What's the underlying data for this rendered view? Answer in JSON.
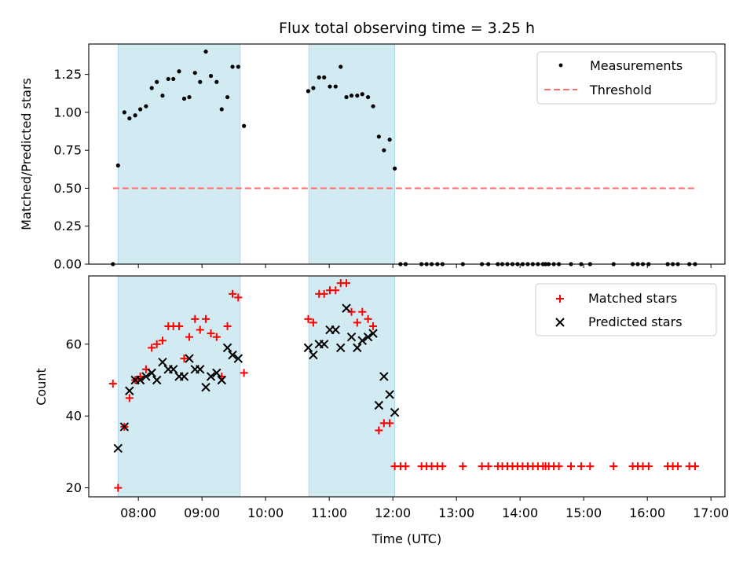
{
  "chart_data": [
    {
      "type": "scatter",
      "title": "Flux total observing time = 3.25 h",
      "ylabel": "Matched/Predicted stars",
      "xlabel": "",
      "xlim": [
        7.22,
        17.22
      ],
      "ylim": [
        0,
        1.45
      ],
      "yticks": [
        0.0,
        0.25,
        0.5,
        0.75,
        1.0,
        1.25
      ],
      "ytick_labels": [
        "0.00",
        "0.25",
        "0.50",
        "0.75",
        "1.00",
        "1.25"
      ],
      "shaded_spans": [
        [
          7.68,
          9.6
        ],
        [
          10.68,
          12.03
        ]
      ],
      "shaded_color": "#add8e6",
      "series": [
        {
          "name": "Measurements",
          "marker": "dot",
          "color": "#000000",
          "x": [
            7.6,
            7.68,
            7.78,
            7.86,
            7.95,
            8.03,
            8.12,
            8.21,
            8.29,
            8.38,
            8.47,
            8.55,
            8.64,
            8.72,
            8.8,
            8.89,
            8.97,
            9.06,
            9.14,
            9.23,
            9.31,
            9.4,
            9.48,
            9.57,
            9.66,
            10.67,
            10.75,
            10.84,
            10.92,
            11.01,
            11.1,
            11.18,
            11.27,
            11.35,
            11.44,
            11.52,
            11.61,
            11.69,
            11.78,
            11.86,
            11.95,
            12.03,
            12.12,
            12.2,
            12.45,
            12.53,
            12.61,
            12.7,
            12.78,
            13.1,
            13.4,
            13.5,
            13.65,
            13.72,
            13.8,
            13.88,
            13.96,
            14.04,
            14.12,
            14.2,
            14.28,
            14.36,
            14.4,
            14.45,
            14.53,
            14.61,
            14.8,
            14.96,
            15.1,
            15.47,
            15.77,
            15.85,
            15.93,
            16.02,
            16.32,
            16.4,
            16.48,
            16.66,
            16.75
          ],
          "y": [
            0.0,
            0.65,
            1.0,
            0.96,
            0.98,
            1.02,
            1.04,
            1.16,
            1.2,
            1.11,
            1.22,
            1.22,
            1.27,
            1.09,
            1.1,
            1.26,
            1.2,
            1.4,
            1.24,
            1.2,
            1.02,
            1.1,
            1.3,
            1.3,
            0.91,
            1.14,
            1.16,
            1.23,
            1.23,
            1.17,
            1.17,
            1.3,
            1.1,
            1.11,
            1.11,
            1.12,
            1.1,
            1.04,
            0.84,
            0.75,
            0.82,
            0.63,
            0.0,
            0.0,
            0.0,
            0.0,
            0.0,
            0.0,
            0.0,
            0.0,
            0.0,
            0.0,
            0.0,
            0.0,
            0.0,
            0.0,
            0.0,
            0.0,
            0.0,
            0.0,
            0.0,
            0.0,
            0.0,
            0.0,
            0.0,
            0.0,
            0.0,
            0.0,
            0.0,
            0.0,
            0.0,
            0.0,
            0.0,
            0.0,
            0.0,
            0.0,
            0.0,
            0.0,
            0.0
          ]
        },
        {
          "name": "Threshold",
          "marker": "dashed-line",
          "color": "#ff6e6e",
          "x": [
            7.6,
            16.78
          ],
          "y": [
            0.5,
            0.5
          ]
        }
      ],
      "legend": {
        "position": "top-right",
        "entries": [
          "Measurements",
          "Threshold"
        ]
      }
    },
    {
      "type": "scatter",
      "title": "",
      "ylabel": "Count",
      "xlabel": "Time (UTC)",
      "xlim": [
        7.22,
        17.22
      ],
      "ylim": [
        17.5,
        79
      ],
      "yticks": [
        20,
        40,
        60
      ],
      "ytick_labels": [
        "20",
        "40",
        "60"
      ],
      "xticks": [
        8,
        9,
        10,
        11,
        12,
        13,
        14,
        15,
        16,
        17
      ],
      "xtick_labels": [
        "08:00",
        "09:00",
        "10:00",
        "11:00",
        "12:00",
        "13:00",
        "14:00",
        "15:00",
        "16:00",
        "17:00"
      ],
      "shaded_spans": [
        [
          7.68,
          9.6
        ],
        [
          10.68,
          12.03
        ]
      ],
      "shaded_color": "#add8e6",
      "series": [
        {
          "name": "Matched stars",
          "marker": "plus",
          "color": "#ff0000",
          "x": [
            7.6,
            7.68,
            7.78,
            7.86,
            7.95,
            8.03,
            8.12,
            8.21,
            8.29,
            8.38,
            8.47,
            8.55,
            8.64,
            8.72,
            8.8,
            8.89,
            8.97,
            9.06,
            9.14,
            9.23,
            9.31,
            9.4,
            9.48,
            9.57,
            9.66,
            10.67,
            10.75,
            10.84,
            10.92,
            11.01,
            11.1,
            11.18,
            11.27,
            11.35,
            11.44,
            11.52,
            11.61,
            11.69,
            11.78,
            11.86,
            11.95,
            12.03,
            12.12,
            12.2,
            12.45,
            12.53,
            12.61,
            12.7,
            12.78,
            13.1,
            13.4,
            13.5,
            13.65,
            13.72,
            13.8,
            13.88,
            13.96,
            14.04,
            14.12,
            14.2,
            14.28,
            14.36,
            14.4,
            14.45,
            14.53,
            14.61,
            14.8,
            14.96,
            15.1,
            15.47,
            15.77,
            15.85,
            15.93,
            16.02,
            16.32,
            16.4,
            16.48,
            16.66,
            16.75
          ],
          "y": [
            49,
            20,
            37,
            45,
            50,
            51,
            53,
            59,
            60,
            61,
            65,
            65,
            65,
            56,
            62,
            67,
            64,
            67,
            63,
            62,
            51,
            65,
            74,
            73,
            52,
            67,
            66,
            74,
            74,
            75,
            75,
            77,
            77,
            69,
            66,
            69,
            67,
            65,
            36,
            38,
            38,
            26,
            26,
            26,
            26,
            26,
            26,
            26,
            26,
            26,
            26,
            26,
            26,
            26,
            26,
            26,
            26,
            26,
            26,
            26,
            26,
            26,
            26,
            26,
            26,
            26,
            26,
            26,
            26,
            26,
            26,
            26,
            26,
            26,
            26,
            26,
            26,
            26,
            26
          ]
        },
        {
          "name": "Predicted stars",
          "marker": "x",
          "color": "#000000",
          "x": [
            7.68,
            7.78,
            7.86,
            7.95,
            8.03,
            8.12,
            8.21,
            8.29,
            8.38,
            8.47,
            8.55,
            8.64,
            8.72,
            8.8,
            8.89,
            8.97,
            9.06,
            9.14,
            9.23,
            9.31,
            9.4,
            9.48,
            9.57,
            10.67,
            10.75,
            10.84,
            10.92,
            11.01,
            11.1,
            11.18,
            11.27,
            11.35,
            11.44,
            11.52,
            11.61,
            11.69,
            11.78,
            11.86,
            11.95,
            12.03
          ],
          "y": [
            31,
            37,
            47,
            50,
            50,
            51,
            52,
            50,
            55,
            53,
            53,
            51,
            51,
            56,
            53,
            53,
            48,
            51,
            52,
            50,
            59,
            57,
            56,
            59,
            57,
            60,
            60,
            64,
            64,
            59,
            70,
            62,
            59,
            61,
            62,
            63,
            43,
            51,
            46,
            41
          ]
        }
      ],
      "legend": {
        "position": "top-right",
        "entries": [
          "Matched stars",
          "Predicted stars"
        ]
      }
    }
  ]
}
